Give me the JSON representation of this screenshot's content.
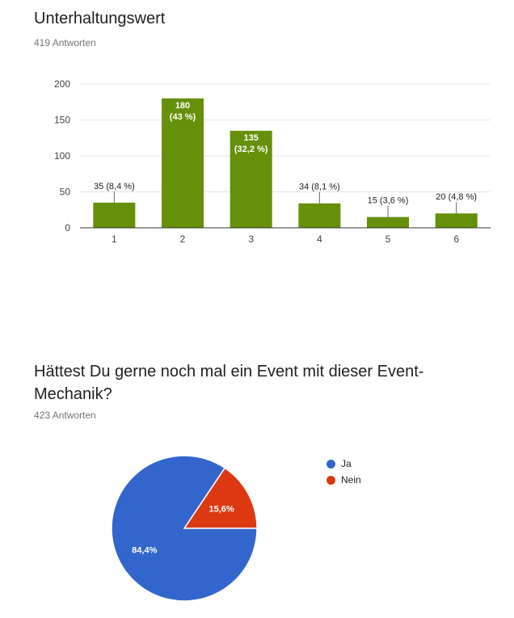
{
  "charts": [
    {
      "title": "Unterhaltungswert",
      "response_count": "419 Antworten"
    },
    {
      "title": "Hättest Du gerne noch mal ein Event mit dieser Event-Mechanik?",
      "response_count": "423 Antworten"
    }
  ],
  "colors": {
    "bar": "#66900a",
    "pie_ja": "#3366cc",
    "pie_nein": "#dc3912",
    "grid": "#e6e6e6",
    "axis": "#333333"
  },
  "chart_data": [
    {
      "type": "bar",
      "title": "Unterhaltungswert",
      "categories": [
        "1",
        "2",
        "3",
        "4",
        "5",
        "6"
      ],
      "values": [
        35,
        180,
        135,
        34,
        15,
        20
      ],
      "labels": [
        [
          "35 (8,4 %)"
        ],
        [
          "180",
          "(43 %)"
        ],
        [
          "135",
          "(32,2 %)"
        ],
        [
          "34 (8,1 %)"
        ],
        [
          "15 (3,6 %)"
        ],
        [
          "20 (4,8 %)"
        ]
      ],
      "label_inside": [
        false,
        true,
        true,
        false,
        false,
        false
      ],
      "yticks": [
        0,
        50,
        100,
        150,
        200
      ],
      "ylim": [
        0,
        200
      ],
      "xlabel": "",
      "ylabel": "",
      "grid": true
    },
    {
      "type": "pie",
      "title": "Hättest Du gerne noch mal ein Event mit dieser Event-Mechanik?",
      "slices": [
        {
          "name": "Ja",
          "value": 84.4,
          "label": "84,4%",
          "color": "#3366cc"
        },
        {
          "name": "Nein",
          "value": 15.6,
          "label": "15,6%",
          "color": "#dc3912"
        }
      ],
      "legend_position": "right"
    }
  ]
}
